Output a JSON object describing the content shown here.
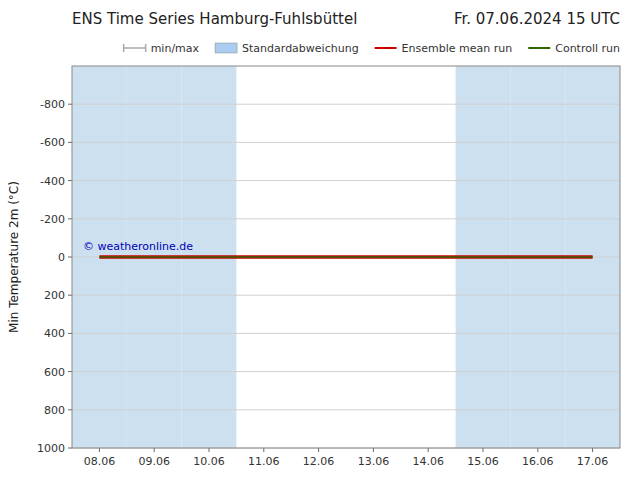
{
  "chart_data": {
    "type": "line",
    "title": "ENS Time Series Hamburg-Fuhlsbüttel",
    "subtitle": "Fr. 07.06.2024 15 UTC",
    "y_label": "Min Temperature 2m (°C)",
    "categories": [
      "08.06",
      "09.06",
      "10.06",
      "11.06",
      "12.06",
      "13.06",
      "14.06",
      "15.06",
      "16.06",
      "17.06"
    ],
    "series": [
      {
        "name": "min/max",
        "type": "errorbar",
        "color": "#aaaaaa",
        "values": [
          null,
          null,
          null,
          null,
          null,
          null,
          null,
          null,
          null,
          null
        ]
      },
      {
        "name": "Standardabweichung",
        "type": "area",
        "color": "#aaccee",
        "values": [
          null,
          null,
          null,
          null,
          null,
          null,
          null,
          null,
          null,
          null
        ]
      },
      {
        "name": "Ensemble mean run",
        "type": "line",
        "color": "#cc0000",
        "values": [
          0,
          0,
          0,
          0,
          0,
          0,
          0,
          0,
          0,
          0
        ]
      },
      {
        "name": "Controll run",
        "type": "line",
        "color": "#336600",
        "values": [
          0,
          0,
          0,
          0,
          0,
          0,
          0,
          0,
          0,
          0
        ]
      }
    ],
    "shaded_categories": [
      "08.06",
      "09.06",
      "10.06",
      "15.06",
      "16.06",
      "17.06"
    ],
    "shaded_color": "#cce0f0",
    "ylim": [
      1000,
      -1000
    ],
    "yticks": [
      -800,
      -600,
      -400,
      -200,
      0,
      200,
      400,
      600,
      800,
      1000
    ],
    "grid": true,
    "legend": "upper right",
    "annotations": [
      {
        "text": "© weatheronline.de",
        "color": "#0000bb"
      }
    ]
  }
}
